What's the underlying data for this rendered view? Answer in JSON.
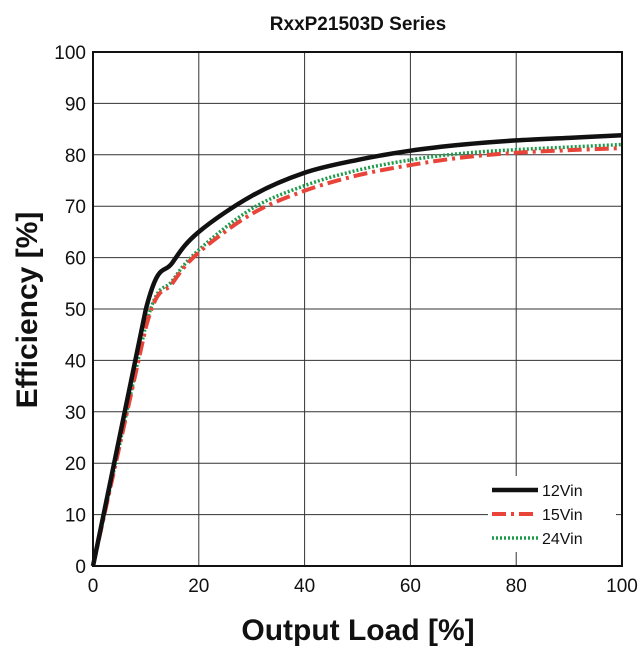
{
  "chart_data": {
    "type": "line",
    "title": "RxxP21503D Series",
    "xlabel": "Output Load [%]",
    "ylabel": "Efficiency [%]",
    "xlim": [
      0,
      100
    ],
    "ylim": [
      0,
      100
    ],
    "x_ticks": [
      "0",
      "20",
      "40",
      "60",
      "80",
      "100"
    ],
    "y_ticks": [
      "0",
      "10",
      "20",
      "30",
      "40",
      "50",
      "60",
      "70",
      "80",
      "90",
      "100"
    ],
    "grid": true,
    "legend_position": "bottom-right",
    "series": [
      {
        "name": "12Vin",
        "color": "#111111",
        "style": "solid",
        "x": [
          0,
          10,
          15,
          20,
          30,
          40,
          50,
          60,
          70,
          80,
          90,
          100
        ],
        "y": [
          0,
          50,
          59,
          65,
          72,
          76.5,
          79,
          80.8,
          82,
          82.8,
          83.3,
          83.8
        ]
      },
      {
        "name": "15Vin",
        "color": "#e8443a",
        "style": "dashdot",
        "x": [
          0,
          10,
          15,
          20,
          30,
          40,
          50,
          60,
          70,
          80,
          90,
          100
        ],
        "y": [
          0,
          46.5,
          55,
          61,
          68.5,
          73,
          76,
          78,
          79.5,
          80.4,
          80.9,
          81.3
        ]
      },
      {
        "name": "24Vin",
        "color": "#1d9a4a",
        "style": "dotted",
        "x": [
          0,
          10,
          15,
          20,
          30,
          40,
          50,
          60,
          70,
          80,
          90,
          100
        ],
        "y": [
          0,
          47,
          55.5,
          61.5,
          69.5,
          74,
          77,
          79,
          80.3,
          81,
          81.5,
          82
        ]
      }
    ]
  }
}
